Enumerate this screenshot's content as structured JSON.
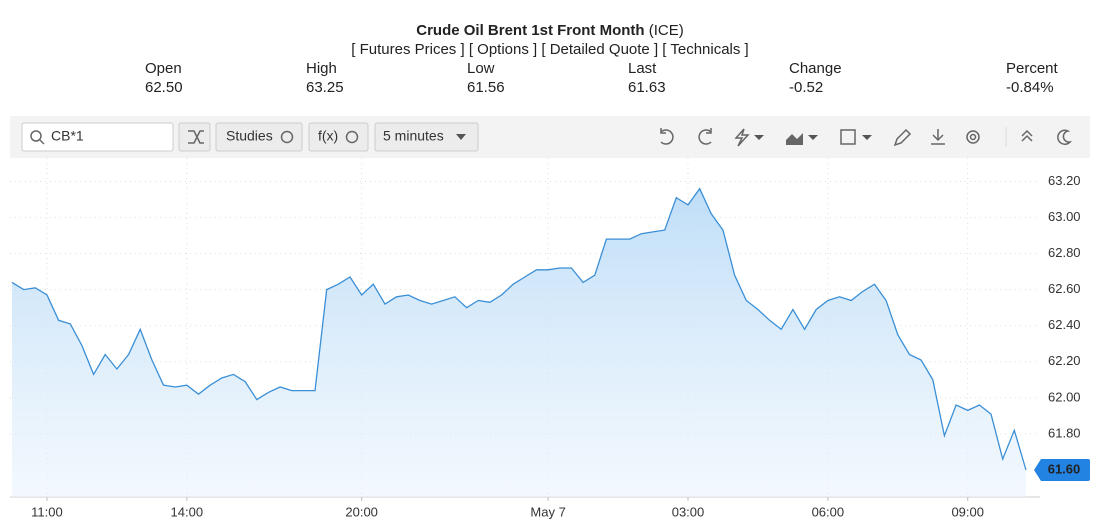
{
  "header": {
    "title": "Crude Oil Brent 1st Front Month",
    "exchange": "(ICE)",
    "links": [
      "[ Futures Prices ]",
      "[ Options ]",
      "[ Detailed Quote ]",
      "[ Technicals ]"
    ]
  },
  "quote": {
    "labels": [
      "Open",
      "High",
      "Low",
      "Last",
      "Change",
      "Percent"
    ],
    "values": [
      "62.50",
      "63.25",
      "61.56",
      "61.63",
      "-0.52",
      "-0.84%"
    ]
  },
  "toolbar": {
    "symbol": "CB*1",
    "studies": "Studies",
    "function": "f(x)",
    "interval": "5 minutes"
  },
  "chart_data": {
    "type": "line",
    "color": "#3a8fd6",
    "grid": true,
    "categories": [
      null,
      null,
      null,
      "11:00",
      null,
      null,
      null,
      null,
      null,
      null,
      null,
      null,
      null,
      null,
      null,
      "14:00",
      null,
      null,
      null,
      null,
      null,
      null,
      null,
      null,
      null,
      null,
      null,
      null,
      null,
      null,
      "20:00",
      null,
      null,
      null,
      null,
      null,
      null,
      null,
      null,
      null,
      null,
      null,
      null,
      null,
      null,
      null,
      "May 7",
      null,
      null,
      null,
      null,
      null,
      null,
      null,
      null,
      null,
      null,
      null,
      "03:00",
      null,
      null,
      null,
      null,
      null,
      null,
      null,
      null,
      null,
      null,
      null,
      "06:00",
      null,
      null,
      null,
      null,
      null,
      null,
      null,
      null,
      null,
      null,
      null,
      "09:00",
      null,
      null,
      null,
      null,
      null
    ],
    "values": [
      62.64,
      62.6,
      62.61,
      62.57,
      62.43,
      62.41,
      62.29,
      62.13,
      62.24,
      62.16,
      62.24,
      62.38,
      62.21,
      62.07,
      62.06,
      62.07,
      62.02,
      62.07,
      62.11,
      62.13,
      62.09,
      61.99,
      62.03,
      62.06,
      62.04,
      62.04,
      62.04,
      62.6,
      62.63,
      62.67,
      62.57,
      62.63,
      62.52,
      62.56,
      62.57,
      62.54,
      62.52,
      62.54,
      62.56,
      62.5,
      62.54,
      62.53,
      62.57,
      62.63,
      62.67,
      62.71,
      62.71,
      62.72,
      62.72,
      62.64,
      62.68,
      62.88,
      62.88,
      62.88,
      62.91,
      62.92,
      62.93,
      63.11,
      63.07,
      63.16,
      63.02,
      62.93,
      62.68,
      62.54,
      62.49,
      62.43,
      62.38,
      62.49,
      62.38,
      62.49,
      62.54,
      62.56,
      62.54,
      62.59,
      62.63,
      62.54,
      62.35,
      62.24,
      62.21,
      62.1,
      61.79,
      61.96,
      61.93,
      61.96,
      61.91,
      61.66,
      61.82,
      61.6
    ],
    "last_value_label": "61.60",
    "ylim": [
      61.45,
      63.33
    ],
    "yticks": [
      {
        "value": 61.8,
        "label": "61.80"
      },
      {
        "value": 62,
        "label": "62.00"
      },
      {
        "value": 62.2,
        "label": "62.20"
      },
      {
        "value": 62.4,
        "label": "62.40"
      },
      {
        "value": 62.6,
        "label": "62.60"
      },
      {
        "value": 62.8,
        "label": "62.80"
      },
      {
        "value": 63,
        "label": "63.00"
      },
      {
        "value": 63.2,
        "label": "63.20"
      }
    ]
  }
}
